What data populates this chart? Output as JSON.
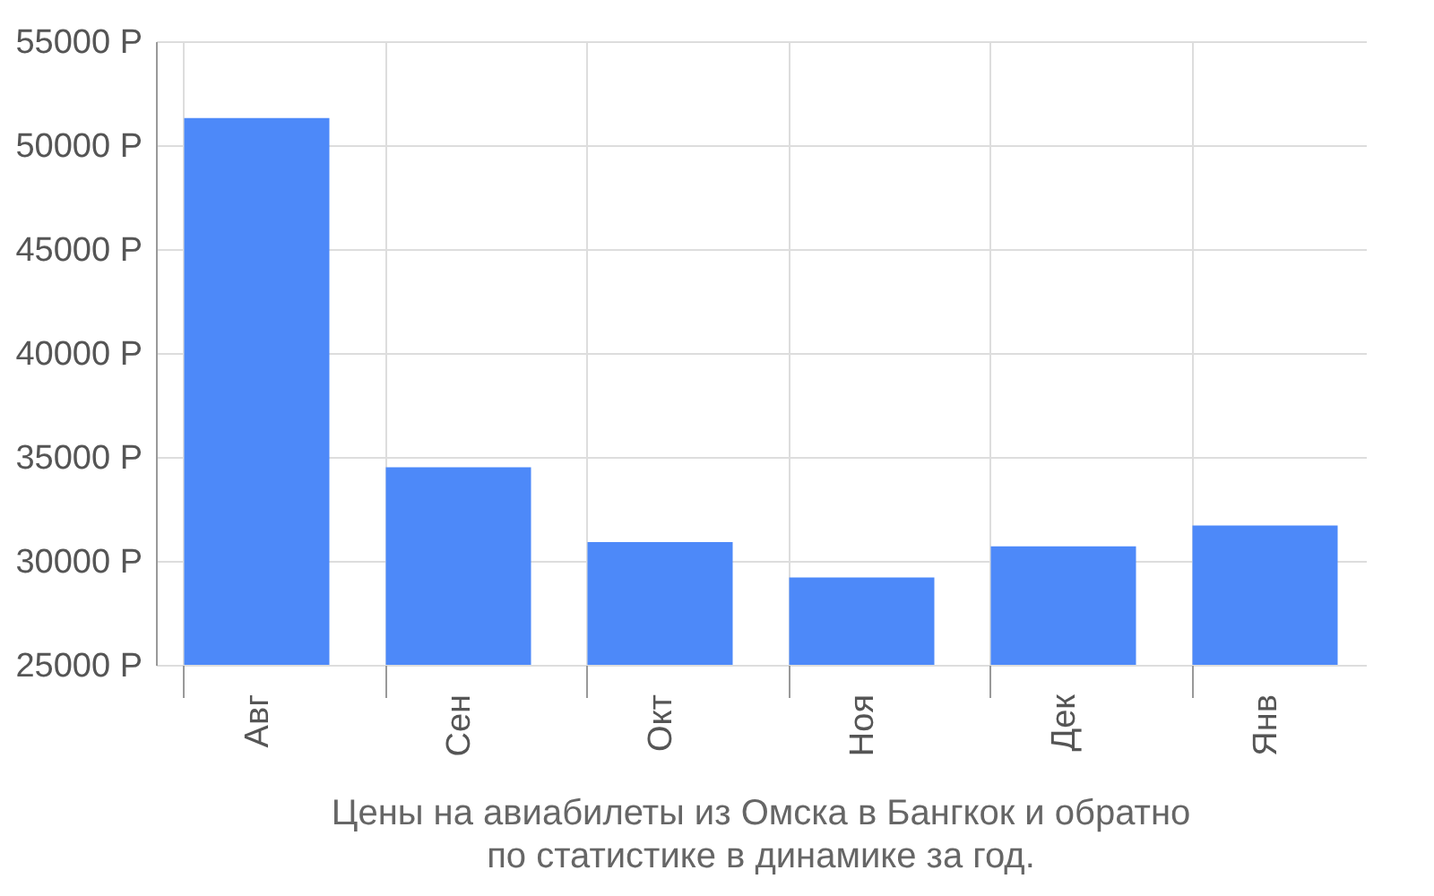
{
  "chart_data": {
    "type": "bar",
    "title": "Цены на авиабилеты из Омска в Бангкок и обратно",
    "subtitle": "по статистике в динамике за год.",
    "categories": [
      "Авг",
      "Сен",
      "Окт",
      "Ноя",
      "Дек",
      "Янв"
    ],
    "values": [
      51300,
      34500,
      30900,
      29200,
      30700,
      31700
    ],
    "color": "#4d89f9",
    "ylim": [
      25000,
      55000
    ],
    "yticks": [
      {
        "value": 25000,
        "label": "25000 Р"
      },
      {
        "value": 30000,
        "label": "30000 Р"
      },
      {
        "value": 35000,
        "label": "35000 Р"
      },
      {
        "value": 40000,
        "label": "40000 Р"
      },
      {
        "value": 45000,
        "label": "45000 Р"
      },
      {
        "value": 50000,
        "label": "50000 Р"
      },
      {
        "value": 55000,
        "label": "55000 Р"
      }
    ],
    "grid": true
  }
}
